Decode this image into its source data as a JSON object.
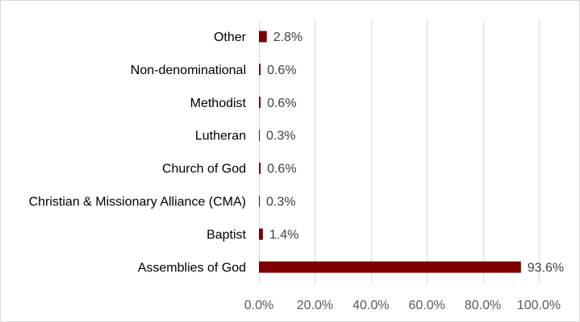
{
  "chart_data": {
    "type": "bar",
    "orientation": "horizontal",
    "categories": [
      "Assemblies of God",
      "Baptist",
      "Christian & Missionary Alliance (CMA)",
      "Church of God",
      "Lutheran",
      "Methodist",
      "Non-denominational",
      "Other"
    ],
    "values": [
      93.6,
      1.4,
      0.3,
      0.6,
      0.3,
      0.6,
      0.6,
      2.8
    ],
    "value_labels": [
      "93.6%",
      "1.4%",
      "0.3%",
      "0.6%",
      "0.3%",
      "0.6%",
      "0.6%",
      "2.8%"
    ],
    "xlim": [
      0,
      100
    ],
    "xticks": [
      0,
      20,
      40,
      60,
      80,
      100
    ],
    "xtick_labels": [
      "0.0%",
      "20.0%",
      "40.0%",
      "60.0%",
      "80.0%",
      "100.0%"
    ],
    "title": "",
    "xlabel": "",
    "ylabel": "",
    "grid": "vertical",
    "legend": "none",
    "colors": {
      "bar": "#7f0000",
      "grid": "#d9d9d9",
      "border": "#d9d9d9"
    }
  }
}
